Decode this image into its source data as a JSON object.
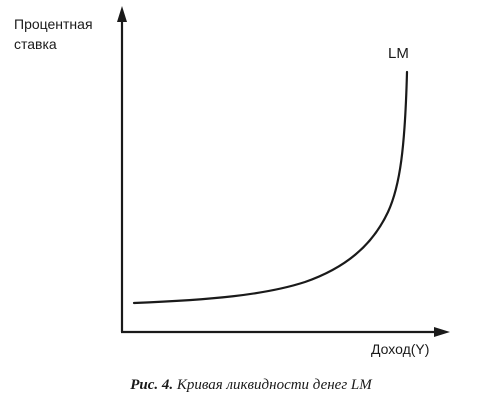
{
  "figure": {
    "y_axis_label_lines": [
      "Процентная",
      "ставка"
    ],
    "x_axis_label": "Доход(Y)",
    "curve_label": "LM",
    "caption_number": "Рис. 4.",
    "caption_text": "Кривая ликвидности денег LM"
  },
  "colors": {
    "ink": "#1a1a1a",
    "background": "#ffffff"
  }
}
